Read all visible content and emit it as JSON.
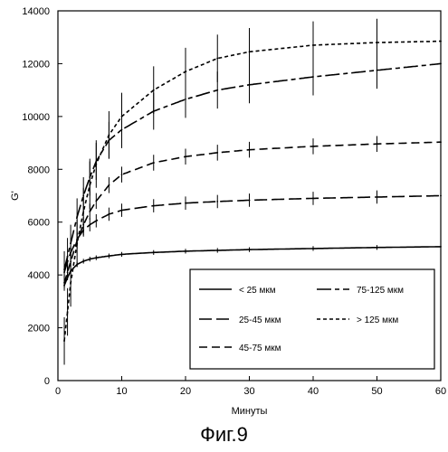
{
  "figure_caption": "Фиг.9",
  "chart_data": {
    "type": "line",
    "xlabel": "Минуты",
    "ylabel": "G'",
    "xlim": [
      0,
      60
    ],
    "ylim": [
      0,
      14000
    ],
    "x_ticks": [
      0,
      10,
      20,
      30,
      40,
      50,
      60
    ],
    "y_ticks": [
      0,
      2000,
      4000,
      6000,
      8000,
      10000,
      12000,
      14000
    ],
    "grid": false,
    "legend": {
      "placement": "bottom-right",
      "columns": 2
    },
    "series": [
      {
        "name": "< 25 мкм",
        "dash": "solid",
        "error_bar_halfwidth": 90,
        "x": [
          1,
          1.5,
          2,
          3,
          4,
          5,
          6,
          8,
          10,
          15,
          20,
          25,
          30,
          40,
          50,
          60
        ],
        "y": [
          3600,
          3900,
          4150,
          4400,
          4520,
          4600,
          4650,
          4720,
          4780,
          4850,
          4900,
          4930,
          4960,
          5000,
          5040,
          5070
        ]
      },
      {
        "name": "25-45 мкм",
        "dash": "long",
        "error_bar_halfwidth": 250,
        "x": [
          1,
          1.5,
          2,
          3,
          4,
          5,
          6,
          8,
          10,
          15,
          20,
          25,
          30,
          40,
          50,
          60
        ],
        "y": [
          4100,
          4500,
          4850,
          5350,
          5700,
          5900,
          6050,
          6300,
          6450,
          6620,
          6720,
          6780,
          6830,
          6900,
          6950,
          7000
        ]
      },
      {
        "name": "45-75 мкм",
        "dash": "medium",
        "error_bar_halfwidth": 300,
        "x": [
          1,
          1.5,
          2,
          3,
          4,
          5,
          6,
          8,
          10,
          15,
          20,
          25,
          30,
          40,
          50,
          60
        ],
        "y": [
          3700,
          4100,
          4500,
          5300,
          5900,
          6400,
          6800,
          7400,
          7800,
          8250,
          8480,
          8630,
          8740,
          8870,
          8960,
          9030
        ]
      },
      {
        "name": "75-125 мкм",
        "dash": "longshort",
        "error_bar_halfwidth": 700,
        "x": [
          1,
          1.5,
          2,
          3,
          4,
          5,
          6,
          8,
          10,
          15,
          20,
          25,
          30,
          40,
          50,
          60
        ],
        "y": [
          4200,
          4700,
          5200,
          6200,
          7000,
          7700,
          8300,
          9100,
          9500,
          10200,
          10650,
          11000,
          11200,
          11500,
          11750,
          12000
        ]
      },
      {
        "name": "> 125 мкм",
        "dash": "short",
        "error_bar_halfwidth": 900,
        "x": [
          1,
          1.5,
          2,
          3,
          4,
          5,
          6,
          8,
          10,
          15,
          20,
          25,
          30,
          40,
          50,
          60
        ],
        "y": [
          1500,
          2600,
          3700,
          5200,
          6400,
          7400,
          8200,
          9300,
          10000,
          11000,
          11700,
          12200,
          12450,
          12700,
          12800,
          12850
        ]
      }
    ]
  }
}
